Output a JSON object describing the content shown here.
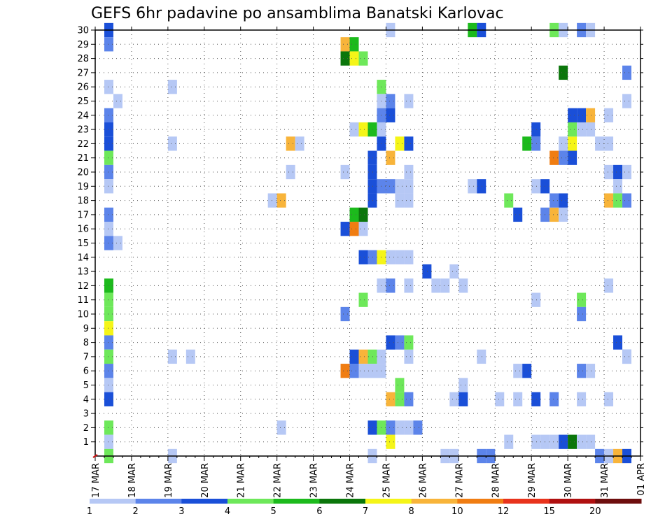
{
  "chart_data": {
    "type": "heatmap",
    "title": "GEFS 6hr padavine po ansamblima Banatski Karlovac",
    "xlabel": "",
    "ylabel": "",
    "x_ticks": [
      "17 MAR",
      "18 MAR",
      "19 MAR",
      "20 MAR",
      "21 MAR",
      "22 MAR",
      "23 MAR",
      "24 MAR",
      "25 MAR",
      "26 MAR",
      "27 MAR",
      "28 MAR",
      "29 MAR",
      "30 MAR",
      "31 MAR",
      "01 APR"
    ],
    "y_ticks": [
      "1",
      "2",
      "3",
      "4",
      "5",
      "6",
      "7",
      "8",
      "9",
      "10",
      "11",
      "12",
      "13",
      "14",
      "15",
      "16",
      "17",
      "18",
      "19",
      "20",
      "21",
      "22",
      "23",
      "24",
      "25",
      "26",
      "27",
      "28",
      "29",
      "30"
    ],
    "steps_per_day": 4,
    "ylim": [
      0,
      30
    ],
    "legend": {
      "position": "bottom",
      "labels": [
        "1",
        "2",
        "3",
        "4",
        "5",
        "6",
        "7",
        "8",
        "10",
        "12",
        "15",
        "20"
      ],
      "colors": [
        "#b6c8f5",
        "#5c84ea",
        "#1a4fd8",
        "#6ee85a",
        "#1cba1c",
        "#0b760b",
        "#f5f518",
        "#f8b43a",
        "#f07d12",
        "#e8331c",
        "#b01010",
        "#6e0e0e"
      ]
    },
    "cells": [
      {
        "step": 1,
        "member": 30,
        "value": 3
      },
      {
        "step": 1,
        "member": 29,
        "value": 2
      },
      {
        "step": 1,
        "member": 26,
        "value": 1
      },
      {
        "step": 2,
        "member": 25,
        "value": 1
      },
      {
        "step": 1,
        "member": 24,
        "value": 2
      },
      {
        "step": 1,
        "member": 23,
        "value": 3
      },
      {
        "step": 1,
        "member": 22,
        "value": 3
      },
      {
        "step": 1,
        "member": 21,
        "value": 4
      },
      {
        "step": 1,
        "member": 20,
        "value": 2
      },
      {
        "step": 1,
        "member": 19,
        "value": 1
      },
      {
        "step": 1,
        "member": 17,
        "value": 2
      },
      {
        "step": 1,
        "member": 16,
        "value": 1
      },
      {
        "step": 1,
        "member": 15,
        "value": 2
      },
      {
        "step": 2,
        "member": 15,
        "value": 1
      },
      {
        "step": 1,
        "member": 12,
        "value": 5
      },
      {
        "step": 1,
        "member": 11,
        "value": 4
      },
      {
        "step": 1,
        "member": 10,
        "value": 4
      },
      {
        "step": 1,
        "member": 9,
        "value": 7
      },
      {
        "step": 1,
        "member": 8,
        "value": 2
      },
      {
        "step": 1,
        "member": 7,
        "value": 4
      },
      {
        "step": 1,
        "member": 6,
        "value": 2
      },
      {
        "step": 1,
        "member": 5,
        "value": 1
      },
      {
        "step": 1,
        "member": 4,
        "value": 3
      },
      {
        "step": 1,
        "member": 2,
        "value": 4
      },
      {
        "step": 1,
        "member": 1,
        "value": 1
      },
      {
        "step": 1,
        "member": 0,
        "value": 4
      },
      {
        "step": 8,
        "member": 26,
        "value": 1
      },
      {
        "step": 8,
        "member": 22,
        "value": 1
      },
      {
        "step": 8,
        "member": 7,
        "value": 1
      },
      {
        "step": 10,
        "member": 7,
        "value": 1
      },
      {
        "step": 8,
        "member": 0,
        "value": 1
      },
      {
        "step": 19,
        "member": 18,
        "value": 1
      },
      {
        "step": 20,
        "member": 18,
        "value": 8
      },
      {
        "step": 21,
        "member": 22,
        "value": 9
      },
      {
        "step": 22,
        "member": 22,
        "value": 1
      },
      {
        "step": 21,
        "member": 20,
        "value": 1
      },
      {
        "step": 20,
        "member": 2,
        "value": 1
      },
      {
        "step": 27,
        "member": 29,
        "value": 8
      },
      {
        "step": 28,
        "member": 29,
        "value": 5
      },
      {
        "step": 27,
        "member": 28,
        "value": 6
      },
      {
        "step": 28,
        "member": 28,
        "value": 7
      },
      {
        "step": 29,
        "member": 28,
        "value": 4
      },
      {
        "step": 27,
        "member": 20,
        "value": 1
      },
      {
        "step": 27,
        "member": 16,
        "value": 3
      },
      {
        "step": 28,
        "member": 16,
        "value": 11
      },
      {
        "step": 29,
        "member": 16,
        "value": 1
      },
      {
        "step": 28,
        "member": 17,
        "value": 5
      },
      {
        "step": 29,
        "member": 17,
        "value": 6
      },
      {
        "step": 27,
        "member": 10,
        "value": 2
      },
      {
        "step": 27,
        "member": 6,
        "value": 11
      },
      {
        "step": 28,
        "member": 6,
        "value": 2
      },
      {
        "step": 28,
        "member": 7,
        "value": 3
      },
      {
        "step": 29,
        "member": 7,
        "value": 8
      },
      {
        "step": 30,
        "member": 7,
        "value": 4
      },
      {
        "step": 31,
        "member": 7,
        "value": 1
      },
      {
        "step": 29,
        "member": 6,
        "value": 1
      },
      {
        "step": 30,
        "member": 6,
        "value": 1
      },
      {
        "step": 31,
        "member": 6,
        "value": 1
      },
      {
        "step": 28,
        "member": 23,
        "value": 1
      },
      {
        "step": 29,
        "member": 23,
        "value": 7
      },
      {
        "step": 30,
        "member": 23,
        "value": 5
      },
      {
        "step": 31,
        "member": 23,
        "value": 1
      },
      {
        "step": 31,
        "member": 26,
        "value": 4
      },
      {
        "step": 31,
        "member": 25,
        "value": 1
      },
      {
        "step": 32,
        "member": 25,
        "value": 2
      },
      {
        "step": 31,
        "member": 24,
        "value": 2
      },
      {
        "step": 32,
        "member": 24,
        "value": 3
      },
      {
        "step": 31,
        "member": 22,
        "value": 3
      },
      {
        "step": 30,
        "member": 21,
        "value": 3
      },
      {
        "step": 30,
        "member": 20,
        "value": 3
      },
      {
        "step": 30,
        "member": 19,
        "value": 3
      },
      {
        "step": 31,
        "member": 19,
        "value": 2
      },
      {
        "step": 32,
        "member": 19,
        "value": 2
      },
      {
        "step": 30,
        "member": 18,
        "value": 3
      },
      {
        "step": 29,
        "member": 14,
        "value": 3
      },
      {
        "step": 30,
        "member": 14,
        "value": 2
      },
      {
        "step": 31,
        "member": 14,
        "value": 7
      },
      {
        "step": 31,
        "member": 12,
        "value": 1
      },
      {
        "step": 32,
        "member": 12,
        "value": 2
      },
      {
        "step": 29,
        "member": 11,
        "value": 4
      },
      {
        "step": 30,
        "member": 2,
        "value": 3
      },
      {
        "step": 31,
        "member": 2,
        "value": 4
      },
      {
        "step": 32,
        "member": 2,
        "value": 2
      },
      {
        "step": 30,
        "member": 0,
        "value": 1
      },
      {
        "step": 32,
        "member": 30,
        "value": 1
      },
      {
        "step": 32,
        "member": 21,
        "value": 9
      },
      {
        "step": 33,
        "member": 22,
        "value": 7
      },
      {
        "step": 34,
        "member": 22,
        "value": 3
      },
      {
        "step": 32,
        "member": 14,
        "value": 1
      },
      {
        "step": 33,
        "member": 14,
        "value": 1
      },
      {
        "step": 34,
        "member": 14,
        "value": 1
      },
      {
        "step": 33,
        "member": 19,
        "value": 1
      },
      {
        "step": 34,
        "member": 19,
        "value": 1
      },
      {
        "step": 34,
        "member": 20,
        "value": 1
      },
      {
        "step": 33,
        "member": 18,
        "value": 1
      },
      {
        "step": 34,
        "member": 18,
        "value": 1
      },
      {
        "step": 34,
        "member": 25,
        "value": 1
      },
      {
        "step": 34,
        "member": 12,
        "value": 1
      },
      {
        "step": 34,
        "member": 7,
        "value": 1
      },
      {
        "step": 33,
        "member": 5,
        "value": 4
      },
      {
        "step": 33,
        "member": 4,
        "value": 4
      },
      {
        "step": 32,
        "member": 4,
        "value": 8
      },
      {
        "step": 34,
        "member": 4,
        "value": 2
      },
      {
        "step": 32,
        "member": 8,
        "value": 3
      },
      {
        "step": 33,
        "member": 8,
        "value": 2
      },
      {
        "step": 34,
        "member": 8,
        "value": 4
      },
      {
        "step": 32,
        "member": 1,
        "value": 7
      },
      {
        "step": 33,
        "member": 2,
        "value": 1
      },
      {
        "step": 34,
        "member": 2,
        "value": 1
      },
      {
        "step": 35,
        "member": 2,
        "value": 2
      },
      {
        "step": 36,
        "member": 13,
        "value": 3
      },
      {
        "step": 37,
        "member": 12,
        "value": 1
      },
      {
        "step": 38,
        "member": 12,
        "value": 1
      },
      {
        "step": 39,
        "member": 13,
        "value": 1
      },
      {
        "step": 40,
        "member": 12,
        "value": 1
      },
      {
        "step": 38,
        "member": 0,
        "value": 1
      },
      {
        "step": 39,
        "member": 0,
        "value": 1
      },
      {
        "step": 39,
        "member": 4,
        "value": 1
      },
      {
        "step": 40,
        "member": 4,
        "value": 3
      },
      {
        "step": 40,
        "member": 5,
        "value": 1
      },
      {
        "step": 41,
        "member": 30,
        "value": 5
      },
      {
        "step": 42,
        "member": 30,
        "value": 3
      },
      {
        "step": 41,
        "member": 19,
        "value": 1
      },
      {
        "step": 42,
        "member": 19,
        "value": 3
      },
      {
        "step": 42,
        "member": 7,
        "value": 1
      },
      {
        "step": 42,
        "member": 0,
        "value": 2
      },
      {
        "step": 43,
        "member": 0,
        "value": 2
      },
      {
        "step": 44,
        "member": 4,
        "value": 1
      },
      {
        "step": 45,
        "member": 1,
        "value": 1
      },
      {
        "step": 46,
        "member": 4,
        "value": 1
      },
      {
        "step": 46,
        "member": 6,
        "value": 1
      },
      {
        "step": 47,
        "member": 6,
        "value": 3
      },
      {
        "step": 46,
        "member": 17,
        "value": 3
      },
      {
        "step": 45,
        "member": 18,
        "value": 4
      },
      {
        "step": 47,
        "member": 22,
        "value": 5
      },
      {
        "step": 48,
        "member": 22,
        "value": 2
      },
      {
        "step": 48,
        "member": 23,
        "value": 3
      },
      {
        "step": 48,
        "member": 19,
        "value": 1
      },
      {
        "step": 49,
        "member": 19,
        "value": 3
      },
      {
        "step": 48,
        "member": 11,
        "value": 1
      },
      {
        "step": 48,
        "member": 4,
        "value": 3
      },
      {
        "step": 48,
        "member": 1,
        "value": 1
      },
      {
        "step": 49,
        "member": 1,
        "value": 1
      },
      {
        "step": 50,
        "member": 1,
        "value": 1
      },
      {
        "step": 49,
        "member": 17,
        "value": 2
      },
      {
        "step": 50,
        "member": 17,
        "value": 8
      },
      {
        "step": 51,
        "member": 17,
        "value": 1
      },
      {
        "step": 50,
        "member": 18,
        "value": 2
      },
      {
        "step": 51,
        "member": 18,
        "value": 3
      },
      {
        "step": 50,
        "member": 4,
        "value": 2
      },
      {
        "step": 51,
        "member": 1,
        "value": 3
      },
      {
        "step": 52,
        "member": 1,
        "value": 6
      },
      {
        "step": 53,
        "member": 1,
        "value": 1
      },
      {
        "step": 54,
        "member": 1,
        "value": 1
      },
      {
        "step": 50,
        "member": 30,
        "value": 4
      },
      {
        "step": 51,
        "member": 30,
        "value": 1
      },
      {
        "step": 51,
        "member": 27,
        "value": 6
      },
      {
        "step": 51,
        "member": 22,
        "value": 1
      },
      {
        "step": 52,
        "member": 22,
        "value": 7
      },
      {
        "step": 52,
        "member": 23,
        "value": 4
      },
      {
        "step": 53,
        "member": 23,
        "value": 1
      },
      {
        "step": 54,
        "member": 23,
        "value": 1
      },
      {
        "step": 52,
        "member": 24,
        "value": 3
      },
      {
        "step": 53,
        "member": 24,
        "value": 3
      },
      {
        "step": 54,
        "member": 24,
        "value": 8
      },
      {
        "step": 50,
        "member": 21,
        "value": 11
      },
      {
        "step": 51,
        "member": 21,
        "value": 2
      },
      {
        "step": 52,
        "member": 21,
        "value": 3
      },
      {
        "step": 53,
        "member": 30,
        "value": 2
      },
      {
        "step": 54,
        "member": 30,
        "value": 1
      },
      {
        "step": 53,
        "member": 11,
        "value": 4
      },
      {
        "step": 53,
        "member": 10,
        "value": 2
      },
      {
        "step": 53,
        "member": 4,
        "value": 1
      },
      {
        "step": 53,
        "member": 6,
        "value": 2
      },
      {
        "step": 54,
        "member": 6,
        "value": 1
      },
      {
        "step": 55,
        "member": 0,
        "value": 2
      },
      {
        "step": 56,
        "member": 0,
        "value": 1
      },
      {
        "step": 55,
        "member": 22,
        "value": 1
      },
      {
        "step": 56,
        "member": 22,
        "value": 1
      },
      {
        "step": 56,
        "member": 24,
        "value": 1
      },
      {
        "step": 56,
        "member": 20,
        "value": 1
      },
      {
        "step": 56,
        "member": 12,
        "value": 1
      },
      {
        "step": 56,
        "member": 4,
        "value": 1
      },
      {
        "step": 57,
        "member": 20,
        "value": 3
      },
      {
        "step": 58,
        "member": 20,
        "value": 1
      },
      {
        "step": 57,
        "member": 19,
        "value": 1
      },
      {
        "step": 56,
        "member": 18,
        "value": 9
      },
      {
        "step": 57,
        "member": 18,
        "value": 4
      },
      {
        "step": 58,
        "member": 18,
        "value": 2
      },
      {
        "step": 57,
        "member": 8,
        "value": 3
      },
      {
        "step": 57,
        "member": 0,
        "value": 8
      },
      {
        "step": 58,
        "member": 7,
        "value": 2
      },
      {
        "step": 58,
        "member": 27,
        "value": 2
      },
      {
        "step": 58,
        "member": 25,
        "value": 1
      },
      {
        "step": 58,
        "member": 7,
        "value": 1
      },
      {
        "step": 58,
        "member": 0,
        "value": 3
      }
    ]
  }
}
